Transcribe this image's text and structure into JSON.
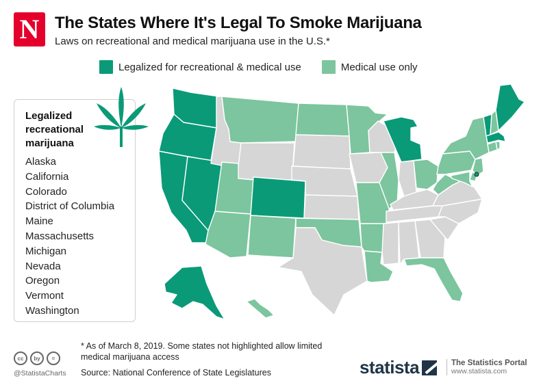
{
  "header": {
    "logo_letter": "N",
    "title": "The States Where It's Legal To Smoke Marijuana",
    "subtitle": "Laws on recreational and medical marijuana use in the U.S.*"
  },
  "legend": [
    {
      "label": "Legalized for recreational & medical use",
      "color": "#0a9a78"
    },
    {
      "label": "Medical use only",
      "color": "#7cc59e"
    }
  ],
  "colors": {
    "other": "#d6d6d6",
    "border": "#ffffff"
  },
  "panel": {
    "heading": "Legalized recreational marijuana",
    "states": [
      "Alaska",
      "California",
      "Colorado",
      "District of Columbia",
      "Maine",
      "Massachusetts",
      "Michigan",
      "Nevada",
      "Oregon",
      "Vermont",
      "Washington"
    ]
  },
  "map": {
    "recreational": [
      "WA",
      "OR",
      "CA",
      "NV",
      "CO",
      "MI",
      "VT",
      "MA",
      "ME",
      "AK",
      "DC"
    ],
    "medical": [
      "MT",
      "ND",
      "MN",
      "UT",
      "AZ",
      "NM",
      "OK",
      "AR",
      "LA",
      "MO",
      "IL",
      "OH",
      "WV",
      "PA",
      "NY",
      "NH",
      "CT",
      "RI",
      "NJ",
      "DE",
      "MD",
      "FL",
      "HI"
    ],
    "none": [
      "ID",
      "WY",
      "SD",
      "NE",
      "KS",
      "TX",
      "IA",
      "WI",
      "IN",
      "KY",
      "TN",
      "MS",
      "AL",
      "GA",
      "SC",
      "NC",
      "VA"
    ]
  },
  "footer": {
    "footnote": "* As of March 8, 2019. Some states not highlighted allow limited medical marijuana access",
    "source": "Source: National Conference of State Legislatures",
    "handle": "@StatistaCharts",
    "cc_icons": [
      "cc",
      "by",
      "="
    ],
    "brand": "statista",
    "portal_name": "The Statistics Portal",
    "portal_url": "www.statista.com"
  }
}
